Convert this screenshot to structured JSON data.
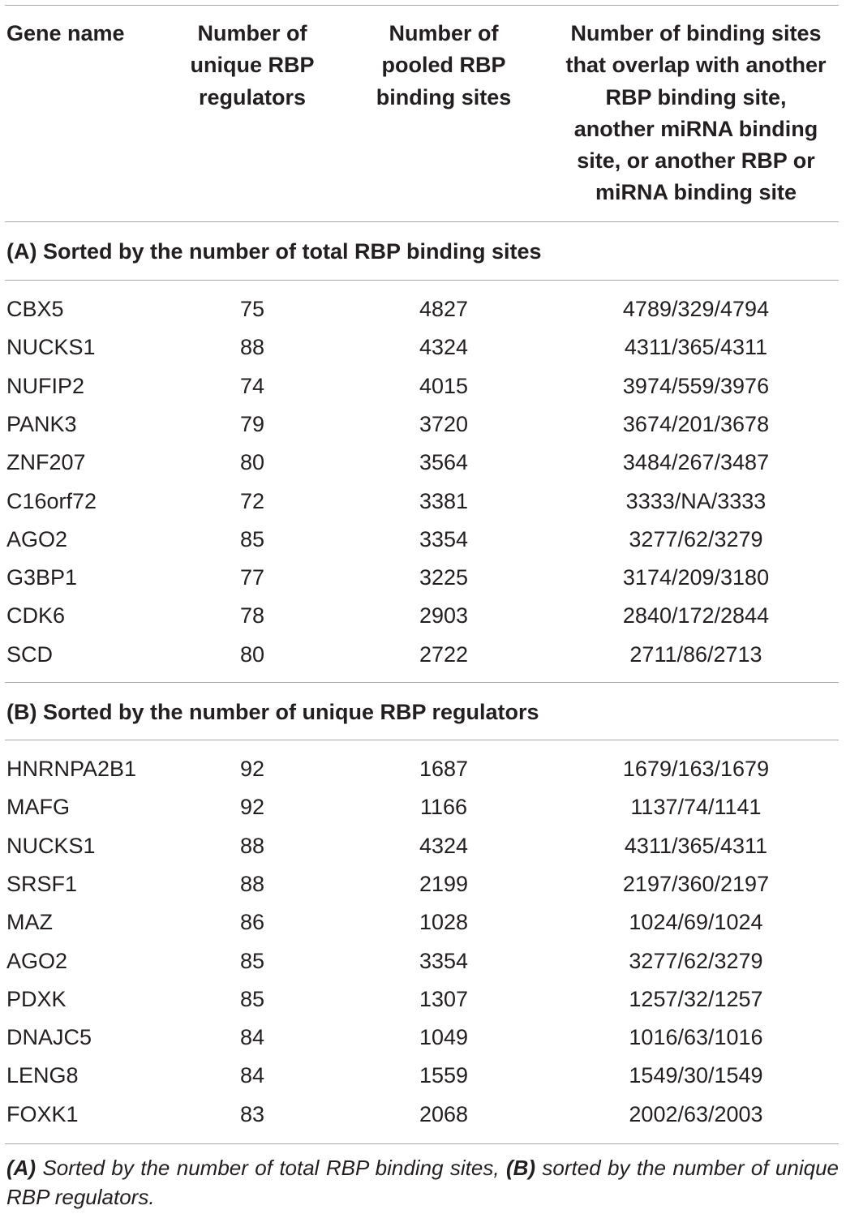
{
  "table": {
    "headers": {
      "gene_name": "Gene name",
      "regulators": [
        "Number of",
        "unique RBP",
        "regulators"
      ],
      "pooled": [
        "Number of",
        "pooled RBP",
        "binding sites"
      ],
      "overlap": [
        "Number of binding sites",
        "that overlap with another",
        "RBP binding site,",
        "another miRNA binding",
        "site, or another RBP or",
        "miRNA binding site"
      ]
    },
    "section_a": {
      "title": "(A) Sorted by the number of total RBP binding sites",
      "rows": [
        {
          "gene": "CBX5",
          "regulators": "75",
          "pooled": "4827",
          "overlap": "4789/329/4794"
        },
        {
          "gene": "NUCKS1",
          "regulators": "88",
          "pooled": "4324",
          "overlap": "4311/365/4311"
        },
        {
          "gene": "NUFIP2",
          "regulators": "74",
          "pooled": "4015",
          "overlap": "3974/559/3976"
        },
        {
          "gene": "PANK3",
          "regulators": "79",
          "pooled": "3720",
          "overlap": "3674/201/3678"
        },
        {
          "gene": "ZNF207",
          "regulators": "80",
          "pooled": "3564",
          "overlap": "3484/267/3487"
        },
        {
          "gene": "C16orf72",
          "regulators": "72",
          "pooled": "3381",
          "overlap": "3333/NA/3333"
        },
        {
          "gene": "AGO2",
          "regulators": "85",
          "pooled": "3354",
          "overlap": "3277/62/3279"
        },
        {
          "gene": "G3BP1",
          "regulators": "77",
          "pooled": "3225",
          "overlap": "3174/209/3180"
        },
        {
          "gene": "CDK6",
          "regulators": "78",
          "pooled": "2903",
          "overlap": "2840/172/2844"
        },
        {
          "gene": "SCD",
          "regulators": "80",
          "pooled": "2722",
          "overlap": "2711/86/2713"
        }
      ]
    },
    "section_b": {
      "title": "(B) Sorted by the number of unique RBP regulators",
      "rows": [
        {
          "gene": "HNRNPA2B1",
          "regulators": "92",
          "pooled": "1687",
          "overlap": "1679/163/1679"
        },
        {
          "gene": "MAFG",
          "regulators": "92",
          "pooled": "1166",
          "overlap": "1137/74/1141"
        },
        {
          "gene": "NUCKS1",
          "regulators": "88",
          "pooled": "4324",
          "overlap": "4311/365/4311"
        },
        {
          "gene": "SRSF1",
          "regulators": "88",
          "pooled": "2199",
          "overlap": "2197/360/2197"
        },
        {
          "gene": "MAZ",
          "regulators": "86",
          "pooled": "1028",
          "overlap": "1024/69/1024"
        },
        {
          "gene": "AGO2",
          "regulators": "85",
          "pooled": "3354",
          "overlap": "3277/62/3279"
        },
        {
          "gene": "PDXK",
          "regulators": "85",
          "pooled": "1307",
          "overlap": "1257/32/1257"
        },
        {
          "gene": "DNAJC5",
          "regulators": "84",
          "pooled": "1049",
          "overlap": "1016/63/1016"
        },
        {
          "gene": "LENG8",
          "regulators": "84",
          "pooled": "1559",
          "overlap": "1549/30/1549"
        },
        {
          "gene": "FOXK1",
          "regulators": "83",
          "pooled": "2068",
          "overlap": "2002/63/2003"
        }
      ]
    }
  },
  "footnote": {
    "a_label": "(A)",
    "a_text": " Sorted by the number of total RBP binding sites, ",
    "b_label": "(B)",
    "b_text": " sorted by the number of unique RBP regulators."
  }
}
